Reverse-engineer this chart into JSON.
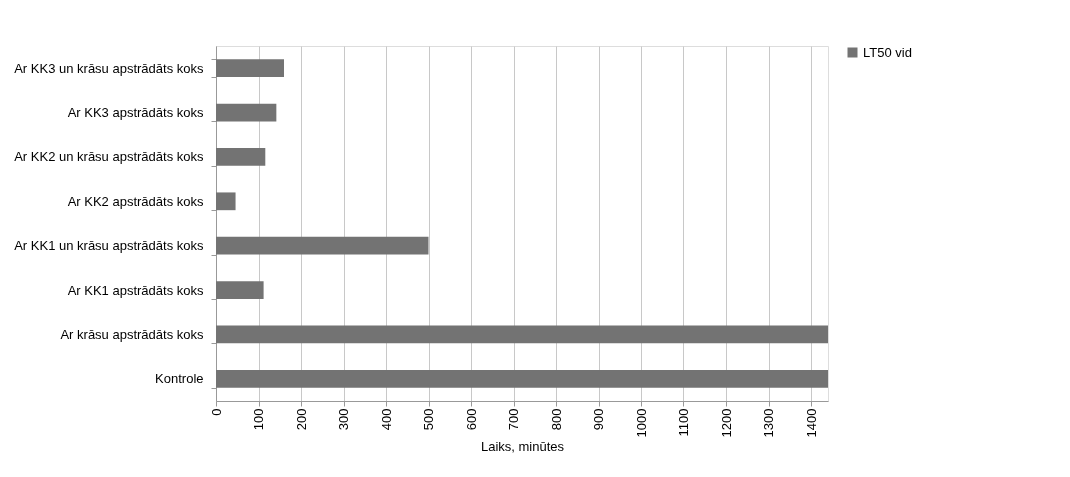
{
  "chart_data": {
    "type": "bar",
    "orientation": "horizontal",
    "xlabel": "Laiks, minūtes",
    "categories": [
      "Ar KK3 un krāsu apstrādāts koks",
      "Ar KK3 apstrādāts koks",
      "Ar KK2 un krāsu apstrādāts koks",
      "Ar KK2 apstrādāts koks",
      "Ar  KK1 un krāsu apstrādāts koks",
      "Ar KK1 apstrādāts koks",
      "Ar krāsu apstrādāts koks",
      "Kontrole"
    ],
    "series": [
      {
        "name": "LT50 vid",
        "color": "#737373",
        "values": [
          160,
          142,
          116,
          46,
          500,
          112,
          1440,
          1440
        ]
      }
    ],
    "xlim": [
      0,
      1440
    ],
    "xticks": [
      0,
      100,
      200,
      300,
      400,
      500,
      600,
      700,
      800,
      900,
      1000,
      1100,
      1200,
      1300,
      1400
    ],
    "grid": "x",
    "legend": "right"
  }
}
